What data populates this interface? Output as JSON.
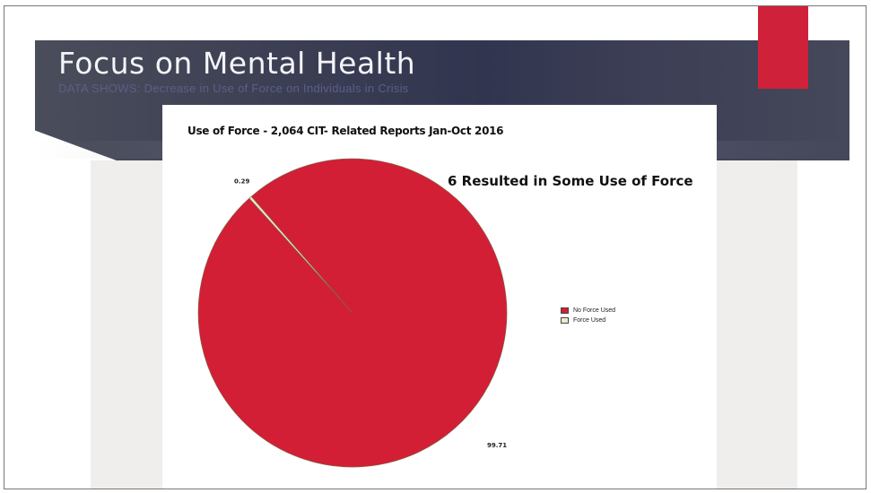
{
  "slide": {
    "title": "Focus on Mental Health",
    "subtitle": "DATA SHOWS: Decrease in Use of Force on Individuals in Crisis"
  },
  "chart_data": {
    "type": "pie",
    "title": "Use of Force - 2,064 CIT- Related Reports Jan-Oct 2016",
    "annotation": "6 Resulted in Some Use of Force",
    "categories": [
      "No Force Used",
      "Force Used"
    ],
    "values": [
      99.71,
      0.29
    ],
    "value_labels": [
      "99.71",
      "0.29"
    ],
    "colors": [
      "#d21f35",
      "#efe7cf"
    ],
    "legend_position": "right"
  }
}
